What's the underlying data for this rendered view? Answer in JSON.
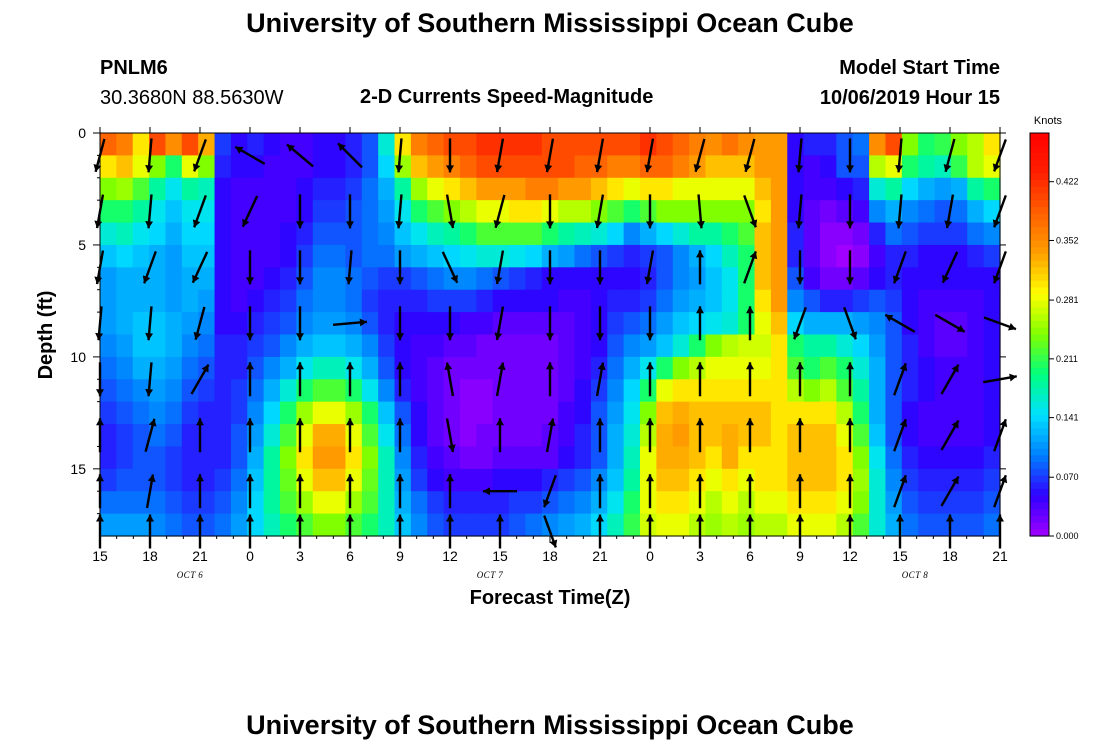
{
  "header": {
    "title": "University of Southern Mississippi Ocean Cube",
    "station_id": "PNLM6",
    "station_coords": "30.3680N 88.5630W",
    "product": "2-D Currents Speed-Magnitude",
    "model_start_label": "Model Start Time",
    "model_start_value": "10/06/2019 Hour 15"
  },
  "footer": {
    "title": "University of Southern Mississippi Ocean Cube"
  },
  "chart_data": {
    "type": "heatmap",
    "title": "2-D Currents Speed-Magnitude",
    "xlabel": "Forecast Time(Z)",
    "ylabel": "Depth (ft)",
    "x_tick_labels": [
      "15",
      "18",
      "21",
      "0",
      "3",
      "6",
      "9",
      "12",
      "15",
      "18",
      "21",
      "0",
      "3",
      "6",
      "9",
      "12",
      "15",
      "18",
      "21"
    ],
    "y_tick_labels": [
      "0",
      "5",
      "10",
      "15"
    ],
    "ylim": [
      0,
      18
    ],
    "date_labels": [
      "OCT 6",
      "OCT 7",
      "OCT 8"
    ],
    "colorbar": {
      "unit": "Knots",
      "ticks": [
        "0.422",
        "0.352",
        "0.281",
        "0.211",
        "0.141",
        "0.070",
        "0.000"
      ],
      "range": [
        0.0,
        0.48
      ],
      "colors": [
        "#a000ff",
        "#3000ff",
        "#0080ff",
        "#00e0ff",
        "#00ff80",
        "#80ff00",
        "#ffff00",
        "#ffa000",
        "#ff6000",
        "#ff2000",
        "#ff0000"
      ]
    },
    "time_hours": [
      0,
      1,
      2,
      3,
      4,
      5,
      6,
      7,
      8,
      9,
      10,
      11,
      12,
      13,
      14,
      15,
      16,
      17,
      18,
      19,
      20,
      21,
      22,
      23,
      24,
      25,
      26,
      27,
      28,
      29,
      30,
      31,
      32,
      33,
      34,
      35,
      36,
      37,
      38,
      39,
      40,
      41,
      42,
      43,
      44,
      45,
      46,
      47,
      48,
      49,
      50,
      51,
      52,
      53,
      54
    ],
    "depths_ft": [
      0.5,
      1.5,
      2.5,
      3.5,
      4.5,
      5.5,
      6.5,
      7.5,
      8.5,
      9.5,
      10.5,
      11.5,
      12.5,
      13.5,
      14.5,
      15.5,
      16.5,
      17.5
    ],
    "speed_knots": [
      [
        0.38,
        0.36,
        0.3,
        0.4,
        0.35,
        0.4,
        0.33,
        0.07,
        0.05,
        0.06,
        0.05,
        0.04,
        0.04,
        0.05,
        0.05,
        0.06,
        0.08,
        0.16,
        0.3,
        0.36,
        0.38,
        0.4,
        0.4,
        0.42,
        0.42,
        0.42,
        0.42,
        0.4,
        0.4,
        0.4,
        0.4,
        0.4,
        0.4,
        0.42,
        0.4,
        0.38,
        0.36,
        0.35,
        0.37,
        0.35,
        0.34,
        0.34,
        0.05,
        0.06,
        0.06,
        0.08,
        0.09,
        0.35,
        0.4,
        0.24,
        0.2,
        0.21,
        0.24,
        0.26,
        0.3
      ],
      [
        0.3,
        0.32,
        0.28,
        0.24,
        0.2,
        0.28,
        0.24,
        0.06,
        0.05,
        0.05,
        0.04,
        0.04,
        0.04,
        0.05,
        0.05,
        0.06,
        0.08,
        0.14,
        0.25,
        0.32,
        0.34,
        0.36,
        0.38,
        0.4,
        0.4,
        0.4,
        0.4,
        0.4,
        0.4,
        0.38,
        0.38,
        0.36,
        0.36,
        0.38,
        0.38,
        0.36,
        0.34,
        0.32,
        0.32,
        0.32,
        0.34,
        0.34,
        0.05,
        0.04,
        0.05,
        0.08,
        0.08,
        0.26,
        0.28,
        0.2,
        0.18,
        0.17,
        0.21,
        0.26,
        0.28
      ],
      [
        0.24,
        0.25,
        0.22,
        0.18,
        0.15,
        0.18,
        0.17,
        0.05,
        0.04,
        0.04,
        0.04,
        0.04,
        0.05,
        0.06,
        0.06,
        0.07,
        0.09,
        0.12,
        0.18,
        0.25,
        0.28,
        0.3,
        0.32,
        0.34,
        0.34,
        0.34,
        0.36,
        0.36,
        0.34,
        0.34,
        0.32,
        0.3,
        0.28,
        0.3,
        0.3,
        0.28,
        0.28,
        0.28,
        0.28,
        0.28,
        0.32,
        0.34,
        0.05,
        0.04,
        0.04,
        0.05,
        0.06,
        0.16,
        0.18,
        0.14,
        0.12,
        0.11,
        0.12,
        0.18,
        0.2
      ],
      [
        0.2,
        0.2,
        0.18,
        0.15,
        0.13,
        0.15,
        0.15,
        0.05,
        0.04,
        0.04,
        0.04,
        0.04,
        0.05,
        0.07,
        0.07,
        0.08,
        0.09,
        0.11,
        0.15,
        0.2,
        0.22,
        0.24,
        0.26,
        0.28,
        0.28,
        0.3,
        0.3,
        0.28,
        0.26,
        0.26,
        0.24,
        0.22,
        0.2,
        0.22,
        0.24,
        0.24,
        0.24,
        0.24,
        0.24,
        0.24,
        0.3,
        0.34,
        0.05,
        0.03,
        0.02,
        0.03,
        0.04,
        0.1,
        0.12,
        0.1,
        0.09,
        0.08,
        0.09,
        0.12,
        0.14
      ],
      [
        0.16,
        0.17,
        0.15,
        0.14,
        0.12,
        0.14,
        0.14,
        0.05,
        0.04,
        0.04,
        0.04,
        0.05,
        0.06,
        0.08,
        0.08,
        0.08,
        0.09,
        0.1,
        0.13,
        0.15,
        0.17,
        0.18,
        0.2,
        0.22,
        0.22,
        0.22,
        0.22,
        0.2,
        0.18,
        0.17,
        0.16,
        0.14,
        0.1,
        0.12,
        0.14,
        0.16,
        0.18,
        0.18,
        0.2,
        0.22,
        0.32,
        0.34,
        0.06,
        0.03,
        0.01,
        0.01,
        0.02,
        0.06,
        0.09,
        0.08,
        0.07,
        0.07,
        0.07,
        0.09,
        0.1
      ],
      [
        0.13,
        0.14,
        0.13,
        0.12,
        0.11,
        0.13,
        0.13,
        0.05,
        0.04,
        0.04,
        0.04,
        0.05,
        0.07,
        0.09,
        0.09,
        0.08,
        0.09,
        0.09,
        0.11,
        0.12,
        0.13,
        0.14,
        0.15,
        0.16,
        0.16,
        0.15,
        0.14,
        0.12,
        0.11,
        0.09,
        0.08,
        0.07,
        0.06,
        0.07,
        0.08,
        0.1,
        0.12,
        0.14,
        0.17,
        0.2,
        0.32,
        0.34,
        0.06,
        0.03,
        0.01,
        0.0,
        0.01,
        0.04,
        0.06,
        0.06,
        0.05,
        0.05,
        0.05,
        0.06,
        0.07
      ],
      [
        0.11,
        0.12,
        0.12,
        0.12,
        0.11,
        0.12,
        0.12,
        0.05,
        0.04,
        0.04,
        0.05,
        0.06,
        0.08,
        0.1,
        0.1,
        0.09,
        0.08,
        0.07,
        0.07,
        0.08,
        0.09,
        0.1,
        0.1,
        0.09,
        0.08,
        0.07,
        0.06,
        0.05,
        0.05,
        0.05,
        0.05,
        0.05,
        0.05,
        0.06,
        0.08,
        0.1,
        0.11,
        0.13,
        0.15,
        0.2,
        0.32,
        0.34,
        0.08,
        0.04,
        0.02,
        0.02,
        0.03,
        0.05,
        0.06,
        0.05,
        0.05,
        0.05,
        0.05,
        0.05,
        0.05
      ],
      [
        0.11,
        0.12,
        0.12,
        0.12,
        0.11,
        0.12,
        0.11,
        0.05,
        0.04,
        0.05,
        0.06,
        0.07,
        0.09,
        0.1,
        0.1,
        0.09,
        0.07,
        0.06,
        0.06,
        0.06,
        0.07,
        0.07,
        0.07,
        0.06,
        0.05,
        0.05,
        0.05,
        0.05,
        0.04,
        0.04,
        0.05,
        0.06,
        0.06,
        0.07,
        0.09,
        0.11,
        0.12,
        0.13,
        0.15,
        0.2,
        0.3,
        0.34,
        0.1,
        0.08,
        0.06,
        0.06,
        0.07,
        0.08,
        0.07,
        0.05,
        0.04,
        0.04,
        0.04,
        0.04,
        0.05
      ],
      [
        0.11,
        0.12,
        0.13,
        0.13,
        0.12,
        0.11,
        0.1,
        0.05,
        0.05,
        0.06,
        0.07,
        0.08,
        0.1,
        0.11,
        0.11,
        0.1,
        0.08,
        0.06,
        0.05,
        0.05,
        0.05,
        0.05,
        0.04,
        0.04,
        0.03,
        0.03,
        0.03,
        0.03,
        0.03,
        0.04,
        0.05,
        0.07,
        0.08,
        0.09,
        0.11,
        0.13,
        0.14,
        0.15,
        0.16,
        0.2,
        0.28,
        0.32,
        0.14,
        0.12,
        0.12,
        0.12,
        0.11,
        0.1,
        0.08,
        0.05,
        0.04,
        0.03,
        0.03,
        0.04,
        0.05
      ],
      [
        0.1,
        0.11,
        0.13,
        0.13,
        0.12,
        0.1,
        0.09,
        0.06,
        0.06,
        0.07,
        0.08,
        0.1,
        0.12,
        0.13,
        0.13,
        0.12,
        0.1,
        0.07,
        0.05,
        0.04,
        0.04,
        0.03,
        0.03,
        0.02,
        0.02,
        0.02,
        0.02,
        0.02,
        0.03,
        0.04,
        0.05,
        0.08,
        0.1,
        0.11,
        0.13,
        0.16,
        0.2,
        0.24,
        0.26,
        0.27,
        0.27,
        0.3,
        0.2,
        0.18,
        0.18,
        0.16,
        0.14,
        0.11,
        0.08,
        0.06,
        0.04,
        0.03,
        0.03,
        0.04,
        0.05
      ],
      [
        0.09,
        0.1,
        0.12,
        0.12,
        0.11,
        0.09,
        0.08,
        0.06,
        0.06,
        0.08,
        0.1,
        0.12,
        0.15,
        0.17,
        0.17,
        0.15,
        0.12,
        0.08,
        0.05,
        0.04,
        0.03,
        0.02,
        0.02,
        0.02,
        0.02,
        0.02,
        0.02,
        0.02,
        0.03,
        0.04,
        0.06,
        0.09,
        0.12,
        0.15,
        0.2,
        0.24,
        0.26,
        0.28,
        0.28,
        0.28,
        0.28,
        0.3,
        0.22,
        0.2,
        0.22,
        0.2,
        0.16,
        0.12,
        0.08,
        0.06,
        0.05,
        0.04,
        0.04,
        0.04,
        0.05
      ],
      [
        0.08,
        0.09,
        0.1,
        0.11,
        0.1,
        0.08,
        0.07,
        0.06,
        0.07,
        0.09,
        0.12,
        0.16,
        0.2,
        0.22,
        0.22,
        0.2,
        0.15,
        0.1,
        0.06,
        0.04,
        0.03,
        0.02,
        0.01,
        0.01,
        0.02,
        0.02,
        0.02,
        0.02,
        0.03,
        0.05,
        0.07,
        0.1,
        0.14,
        0.2,
        0.28,
        0.3,
        0.3,
        0.3,
        0.3,
        0.3,
        0.3,
        0.3,
        0.26,
        0.24,
        0.26,
        0.22,
        0.18,
        0.12,
        0.08,
        0.06,
        0.05,
        0.04,
        0.04,
        0.04,
        0.05
      ],
      [
        0.07,
        0.08,
        0.09,
        0.1,
        0.09,
        0.07,
        0.06,
        0.06,
        0.07,
        0.1,
        0.14,
        0.2,
        0.25,
        0.28,
        0.28,
        0.25,
        0.2,
        0.13,
        0.08,
        0.05,
        0.03,
        0.02,
        0.01,
        0.01,
        0.02,
        0.02,
        0.02,
        0.02,
        0.04,
        0.05,
        0.08,
        0.11,
        0.15,
        0.24,
        0.32,
        0.33,
        0.32,
        0.32,
        0.32,
        0.32,
        0.32,
        0.3,
        0.3,
        0.3,
        0.3,
        0.26,
        0.2,
        0.12,
        0.08,
        0.05,
        0.04,
        0.04,
        0.04,
        0.04,
        0.05
      ],
      [
        0.06,
        0.07,
        0.08,
        0.09,
        0.08,
        0.06,
        0.06,
        0.06,
        0.08,
        0.11,
        0.16,
        0.22,
        0.28,
        0.33,
        0.33,
        0.28,
        0.22,
        0.15,
        0.09,
        0.05,
        0.03,
        0.02,
        0.01,
        0.02,
        0.02,
        0.02,
        0.02,
        0.03,
        0.04,
        0.06,
        0.08,
        0.12,
        0.16,
        0.26,
        0.33,
        0.34,
        0.32,
        0.32,
        0.33,
        0.32,
        0.32,
        0.3,
        0.32,
        0.32,
        0.32,
        0.28,
        0.22,
        0.13,
        0.08,
        0.05,
        0.04,
        0.04,
        0.04,
        0.04,
        0.05
      ],
      [
        0.06,
        0.07,
        0.08,
        0.08,
        0.07,
        0.06,
        0.06,
        0.06,
        0.08,
        0.12,
        0.18,
        0.24,
        0.3,
        0.34,
        0.34,
        0.3,
        0.24,
        0.17,
        0.1,
        0.06,
        0.04,
        0.03,
        0.02,
        0.02,
        0.03,
        0.03,
        0.03,
        0.03,
        0.05,
        0.06,
        0.08,
        0.12,
        0.17,
        0.28,
        0.33,
        0.33,
        0.32,
        0.3,
        0.33,
        0.3,
        0.3,
        0.3,
        0.32,
        0.32,
        0.32,
        0.3,
        0.24,
        0.15,
        0.09,
        0.06,
        0.05,
        0.05,
        0.05,
        0.05,
        0.06
      ],
      [
        0.07,
        0.08,
        0.08,
        0.08,
        0.07,
        0.06,
        0.06,
        0.07,
        0.09,
        0.13,
        0.18,
        0.23,
        0.28,
        0.32,
        0.32,
        0.28,
        0.23,
        0.17,
        0.11,
        0.07,
        0.05,
        0.04,
        0.04,
        0.04,
        0.05,
        0.05,
        0.05,
        0.06,
        0.07,
        0.08,
        0.1,
        0.13,
        0.18,
        0.28,
        0.32,
        0.32,
        0.3,
        0.28,
        0.3,
        0.28,
        0.3,
        0.3,
        0.32,
        0.32,
        0.32,
        0.3,
        0.25,
        0.16,
        0.1,
        0.07,
        0.06,
        0.06,
        0.06,
        0.06,
        0.07
      ],
      [
        0.09,
        0.09,
        0.09,
        0.09,
        0.08,
        0.07,
        0.07,
        0.08,
        0.1,
        0.14,
        0.18,
        0.22,
        0.25,
        0.28,
        0.28,
        0.25,
        0.22,
        0.17,
        0.12,
        0.09,
        0.07,
        0.06,
        0.06,
        0.06,
        0.06,
        0.07,
        0.07,
        0.08,
        0.09,
        0.1,
        0.12,
        0.15,
        0.2,
        0.28,
        0.3,
        0.3,
        0.28,
        0.26,
        0.28,
        0.26,
        0.28,
        0.28,
        0.3,
        0.3,
        0.3,
        0.28,
        0.24,
        0.16,
        0.11,
        0.08,
        0.07,
        0.07,
        0.07,
        0.07,
        0.08
      ],
      [
        0.11,
        0.11,
        0.11,
        0.1,
        0.09,
        0.08,
        0.08,
        0.09,
        0.11,
        0.14,
        0.17,
        0.2,
        0.22,
        0.24,
        0.24,
        0.22,
        0.2,
        0.17,
        0.13,
        0.1,
        0.08,
        0.07,
        0.07,
        0.07,
        0.07,
        0.08,
        0.09,
        0.1,
        0.11,
        0.12,
        0.14,
        0.17,
        0.21,
        0.27,
        0.28,
        0.28,
        0.26,
        0.25,
        0.26,
        0.25,
        0.26,
        0.26,
        0.28,
        0.28,
        0.28,
        0.26,
        0.22,
        0.16,
        0.12,
        0.09,
        0.08,
        0.08,
        0.08,
        0.08,
        0.09
      ]
    ],
    "vector_times_h": [
      0,
      3,
      6,
      9,
      12,
      15,
      18,
      21,
      24,
      27,
      30,
      33,
      36,
      39,
      42,
      45,
      48,
      51,
      54
    ],
    "vector_depths_ft": [
      1,
      3.5,
      6,
      8.5,
      11,
      13.5,
      16,
      17.8
    ],
    "vector_directions_deg": [
      [
        195,
        185,
        200,
        300,
        310,
        315,
        185,
        180,
        190,
        190,
        190,
        190,
        195,
        195,
        185,
        180,
        185,
        195,
        200
      ],
      [
        190,
        185,
        200,
        205,
        180,
        180,
        185,
        170,
        195,
        180,
        190,
        180,
        175,
        160,
        185,
        180,
        185,
        190,
        200
      ],
      [
        190,
        200,
        205,
        180,
        180,
        185,
        180,
        155,
        190,
        180,
        180,
        190,
        0,
        20,
        180,
        180,
        200,
        205,
        200
      ],
      [
        185,
        185,
        195,
        180,
        180,
        85,
        180,
        180,
        190,
        180,
        180,
        180,
        0,
        0,
        200,
        160,
        300,
        120,
        110
      ],
      [
        180,
        185,
        30,
        0,
        0,
        0,
        0,
        350,
        10,
        0,
        10,
        0,
        0,
        0,
        0,
        0,
        20,
        30,
        80
      ],
      [
        0,
        15,
        0,
        0,
        0,
        0,
        0,
        170,
        0,
        10,
        0,
        0,
        0,
        0,
        0,
        0,
        20,
        30,
        20
      ],
      [
        0,
        10,
        0,
        0,
        0,
        0,
        0,
        0,
        270,
        200,
        0,
        0,
        0,
        0,
        0,
        0,
        20,
        30,
        20
      ],
      [
        0,
        0,
        0,
        0,
        0,
        0,
        0,
        0,
        0,
        160,
        0,
        0,
        0,
        0,
        0,
        0,
        0,
        0,
        0
      ]
    ]
  }
}
